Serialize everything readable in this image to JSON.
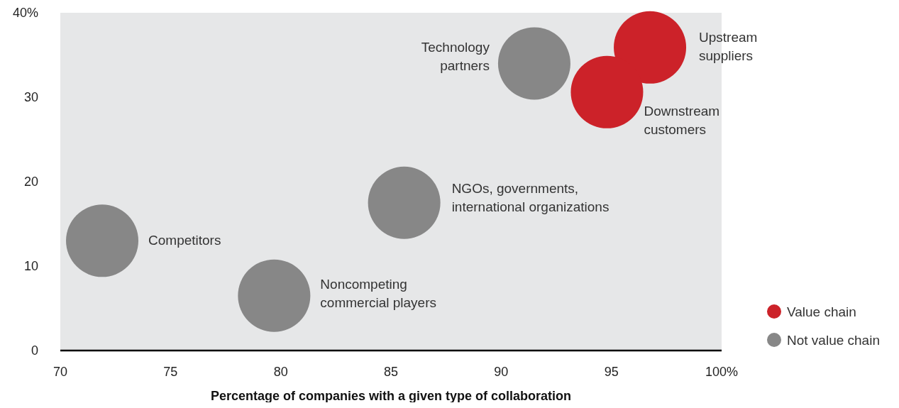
{
  "chart_data": {
    "type": "bubble",
    "xlabel": "Percentage of companies with a given type of collaboration",
    "xlim": [
      70,
      100
    ],
    "xticks": [
      70,
      75,
      80,
      85,
      90,
      95,
      {
        "value": 100,
        "label": "100%"
      }
    ],
    "ylim": [
      0,
      40
    ],
    "yticks": [
      0,
      10,
      20,
      30,
      {
        "value": 40,
        "label": "40%"
      }
    ],
    "grid": false,
    "legend": "bottom right",
    "series": [
      {
        "name": "Value chain",
        "color": "#cc2229",
        "x": [
          96.75,
          94.8
        ],
        "values": [
          35.9,
          30.6
        ],
        "sizes": [
          1,
          1
        ]
      },
      {
        "name": "Not value chain",
        "color": "#878787",
        "x": [
          91.5,
          85.6,
          71.9,
          79.7
        ],
        "values": [
          34,
          17.5,
          13,
          6.5
        ],
        "sizes": [
          1,
          1,
          1,
          1
        ]
      }
    ],
    "annotations": [
      "Upstream\nsuppliers",
      "Downstream\ncustomers",
      "Technology\npartners",
      "NGOs, governments,\ninternational organizations",
      "Competitors",
      "Noncompeting\ncommercial players"
    ]
  }
}
